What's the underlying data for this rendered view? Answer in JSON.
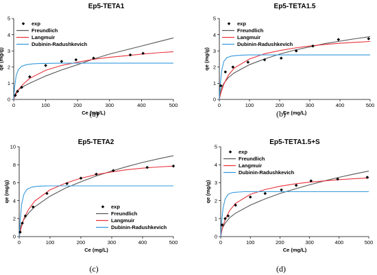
{
  "chart_data": [
    {
      "type": "line",
      "caption": "(a)",
      "title": "Ep5-TETA1",
      "xlabel": "Ce (mg/L)",
      "ylabel": "qe (mg/g)",
      "xlim": [
        0,
        500
      ],
      "ylim": [
        0,
        5
      ],
      "xticks": [
        0,
        100,
        200,
        300,
        400,
        500
      ],
      "yticks": [
        0,
        1,
        2,
        3,
        4,
        5
      ],
      "legend_position": "top-left",
      "series": [
        {
          "name": "exp",
          "kind": "scatter",
          "color": "#000000",
          "x": [
            5,
            12,
            25,
            50,
            100,
            150,
            195,
            250,
            365,
            405
          ],
          "y": [
            0.25,
            0.5,
            0.75,
            1.4,
            2.1,
            2.35,
            2.45,
            2.55,
            2.75,
            2.85
          ]
        },
        {
          "name": "Freundlich",
          "kind": "line",
          "color": "#555555",
          "x": [
            0,
            5,
            15,
            30,
            50,
            100,
            150,
            200,
            250,
            300,
            350,
            400,
            450,
            500
          ],
          "y": [
            0,
            0.35,
            0.6,
            0.8,
            1.0,
            1.45,
            1.82,
            2.15,
            2.5,
            2.8,
            3.05,
            3.3,
            3.55,
            3.8
          ]
        },
        {
          "name": "Langmuir",
          "kind": "line",
          "color": "#e8323a",
          "x": [
            0,
            5,
            15,
            30,
            50,
            100,
            150,
            200,
            250,
            300,
            350,
            400,
            450,
            500
          ],
          "y": [
            0,
            0.25,
            0.6,
            0.95,
            1.3,
            1.8,
            2.1,
            2.3,
            2.48,
            2.6,
            2.7,
            2.8,
            2.88,
            2.95
          ]
        },
        {
          "name": "Dubinin-Radushkevich",
          "kind": "line",
          "color": "#3399dd",
          "x": [
            0,
            3,
            8,
            15,
            25,
            40,
            60,
            80,
            100,
            150,
            250,
            500
          ],
          "y": [
            0,
            0.8,
            1.5,
            1.85,
            2.05,
            2.15,
            2.2,
            2.22,
            2.23,
            2.24,
            2.24,
            2.24
          ]
        }
      ]
    },
    {
      "type": "line",
      "caption": "(b)",
      "title": "Ep5-TETA1.5",
      "xlabel": "Ce (mg/L)",
      "ylabel": "qe (mg/g)",
      "xlim": [
        0,
        500
      ],
      "ylim": [
        0,
        5
      ],
      "xticks": [
        0,
        100,
        200,
        300,
        400,
        500
      ],
      "yticks": [
        0,
        1,
        2,
        3,
        4,
        5
      ],
      "legend_position": "top-left",
      "series": [
        {
          "name": "exp",
          "kind": "scatter",
          "color": "#000000",
          "x": [
            5,
            20,
            45,
            95,
            150,
            205,
            255,
            310,
            395,
            495
          ],
          "y": [
            0.85,
            1.7,
            2.0,
            2.3,
            2.45,
            2.55,
            3.0,
            3.3,
            3.7,
            3.75
          ]
        },
        {
          "name": "Freundlich",
          "kind": "line",
          "color": "#555555",
          "x": [
            0,
            5,
            15,
            30,
            50,
            100,
            150,
            200,
            250,
            300,
            350,
            400,
            450,
            500
          ],
          "y": [
            0,
            0.6,
            1.0,
            1.35,
            1.65,
            2.15,
            2.5,
            2.8,
            3.05,
            3.25,
            3.45,
            3.6,
            3.75,
            3.88
          ]
        },
        {
          "name": "Langmuir",
          "kind": "line",
          "color": "#e8323a",
          "x": [
            0,
            5,
            15,
            30,
            50,
            100,
            150,
            200,
            250,
            300,
            350,
            400,
            450,
            500
          ],
          "y": [
            0,
            0.4,
            0.95,
            1.5,
            1.95,
            2.5,
            2.82,
            3.02,
            3.18,
            3.3,
            3.4,
            3.47,
            3.53,
            3.58
          ]
        },
        {
          "name": "Dubinin-Radushkevich",
          "kind": "line",
          "color": "#3399dd",
          "x": [
            0,
            3,
            8,
            15,
            25,
            40,
            60,
            80,
            100,
            150,
            250,
            500
          ],
          "y": [
            0,
            0.9,
            1.8,
            2.35,
            2.58,
            2.68,
            2.72,
            2.74,
            2.75,
            2.75,
            2.75,
            2.75
          ]
        }
      ]
    },
    {
      "type": "line",
      "caption": "(c)",
      "title": "Ep5-TETA2",
      "xlabel": "Ce (mg/L)",
      "ylabel": "qe (mg/g)",
      "xlim": [
        0,
        500
      ],
      "ylim": [
        0,
        10
      ],
      "xticks": [
        0,
        100,
        200,
        300,
        400,
        500
      ],
      "yticks": [
        0,
        2,
        4,
        6,
        8,
        10
      ],
      "legend_position": "bottom-center",
      "series": [
        {
          "name": "exp",
          "kind": "scatter",
          "color": "#000000",
          "x": [
            3,
            10,
            20,
            45,
            90,
            155,
            200,
            250,
            305,
            415,
            500
          ],
          "y": [
            0.5,
            1.5,
            2.3,
            3.3,
            4.8,
            5.9,
            6.5,
            6.95,
            7.35,
            7.7,
            7.85
          ]
        },
        {
          "name": "Freundlich",
          "kind": "line",
          "color": "#555555",
          "x": [
            0,
            5,
            15,
            30,
            50,
            100,
            150,
            200,
            250,
            300,
            350,
            400,
            450,
            500
          ],
          "y": [
            0,
            1.2,
            1.9,
            2.6,
            3.3,
            4.5,
            5.4,
            6.1,
            6.75,
            7.3,
            7.8,
            8.25,
            8.65,
            9.0
          ]
        },
        {
          "name": "Langmuir",
          "kind": "line",
          "color": "#e8323a",
          "x": [
            0,
            5,
            15,
            30,
            50,
            100,
            150,
            200,
            250,
            300,
            350,
            400,
            450,
            500
          ],
          "y": [
            0,
            0.8,
            2.0,
            3.0,
            3.95,
            5.2,
            5.95,
            6.5,
            6.9,
            7.2,
            7.45,
            7.62,
            7.75,
            7.85
          ]
        },
        {
          "name": "Dubinin-Radushkevich",
          "kind": "line",
          "color": "#3399dd",
          "x": [
            0,
            3,
            8,
            15,
            25,
            40,
            60,
            80,
            100,
            150,
            250,
            500
          ],
          "y": [
            0,
            1.8,
            3.6,
            4.7,
            5.25,
            5.5,
            5.6,
            5.63,
            5.65,
            5.65,
            5.65,
            5.65
          ]
        }
      ]
    },
    {
      "type": "line",
      "caption": "(d)",
      "title": "Ep5-TETA1.5+S",
      "xlabel": "Ce (mg/L)",
      "ylabel": "qe (mg/g)",
      "xlim": [
        0,
        500
      ],
      "ylim": [
        0,
        5
      ],
      "xticks": [
        0,
        100,
        200,
        300,
        400,
        500
      ],
      "yticks": [
        0,
        1,
        2,
        3,
        4,
        5
      ],
      "legend_position": "top-left",
      "series": [
        {
          "name": "exp",
          "kind": "scatter",
          "color": "#000000",
          "x": [
            5,
            15,
            25,
            50,
            100,
            150,
            205,
            255,
            305,
            395,
            495
          ],
          "y": [
            0.65,
            1.0,
            1.15,
            1.75,
            2.2,
            2.4,
            2.6,
            2.85,
            3.1,
            3.2,
            3.3
          ]
        },
        {
          "name": "Freundlich",
          "kind": "line",
          "color": "#555555",
          "x": [
            0,
            5,
            15,
            30,
            50,
            100,
            150,
            200,
            250,
            300,
            350,
            400,
            450,
            500
          ],
          "y": [
            0,
            0.45,
            0.75,
            1.05,
            1.3,
            1.75,
            2.1,
            2.4,
            2.65,
            2.88,
            3.1,
            3.3,
            3.48,
            3.65
          ]
        },
        {
          "name": "Langmuir",
          "kind": "line",
          "color": "#e8323a",
          "x": [
            0,
            5,
            15,
            30,
            50,
            100,
            150,
            200,
            250,
            300,
            350,
            400,
            450,
            500
          ],
          "y": [
            0,
            0.45,
            0.95,
            1.45,
            1.85,
            2.35,
            2.62,
            2.8,
            2.93,
            3.03,
            3.1,
            3.17,
            3.22,
            3.26
          ]
        },
        {
          "name": "Dubinin-Radushkevich",
          "kind": "line",
          "color": "#3399dd",
          "x": [
            0,
            3,
            8,
            15,
            25,
            40,
            60,
            80,
            100,
            150,
            250,
            500
          ],
          "y": [
            0,
            0.8,
            1.6,
            2.1,
            2.35,
            2.45,
            2.48,
            2.5,
            2.5,
            2.5,
            2.5,
            2.5
          ]
        }
      ]
    }
  ]
}
